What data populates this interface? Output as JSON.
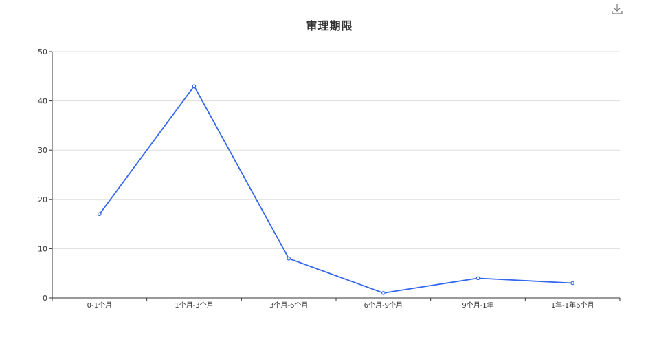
{
  "toolbox": {
    "download_icon": "download-icon"
  },
  "chart_data": {
    "type": "line",
    "title": "审理期限",
    "categories": [
      "0-1个月",
      "1个月-3个月",
      "3个月-6个月",
      "6个月-9个月",
      "9个月-1年",
      "1年-1年6个月"
    ],
    "series": [
      {
        "values": [
          17,
          43,
          8,
          1,
          4,
          3
        ],
        "color": "#3366ee"
      }
    ],
    "ylim": [
      0,
      50
    ],
    "yticks": [
      0,
      10,
      20,
      30,
      40,
      50
    ],
    "grid": true,
    "colors": {
      "axis": "#333333",
      "grid": "#dddddd",
      "tick_text": "#333333",
      "marker_fill": "#ffffff",
      "icon": "#777777"
    }
  }
}
